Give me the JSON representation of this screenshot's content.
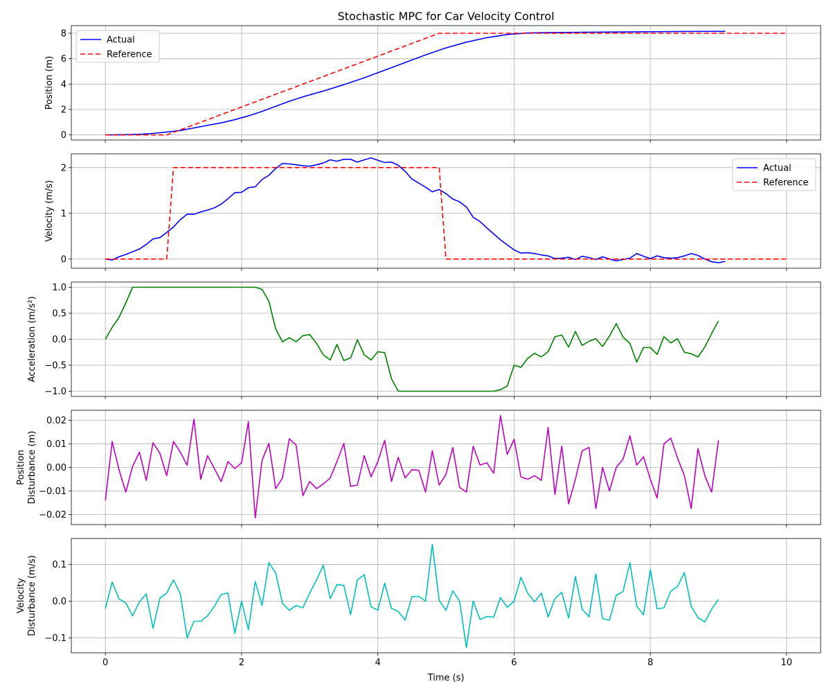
{
  "figure": {
    "title": "Stochastic MPC for Car Velocity Control",
    "xlabel": "Time (s)"
  },
  "colors": {
    "actual": "#0000ff",
    "reference": "#ff0000",
    "acceleration": "#008000",
    "pos_disturbance": "#bf00bf",
    "vel_disturbance": "#00bfbf"
  },
  "chart_data": [
    {
      "type": "line",
      "ylabel": "Position (m)",
      "xlim": [
        -0.5,
        10.5
      ],
      "ylim": [
        -0.4,
        8.6
      ],
      "xticks": [
        0,
        2,
        4,
        6,
        8,
        10
      ],
      "yticks": [
        0,
        2,
        4,
        6,
        8
      ],
      "grid": true,
      "legend": "top-left",
      "show_xticklabels": false,
      "series": [
        {
          "name": "Actual",
          "color": "#0000ff",
          "dash": "",
          "x": [
            0,
            0.3,
            0.5,
            0.7,
            0.9,
            1.1,
            1.3,
            1.5,
            1.7,
            1.9,
            2.1,
            2.3,
            2.5,
            2.7,
            2.9,
            3.2,
            3.5,
            3.8,
            4.1,
            4.4,
            4.7,
            5.0,
            5.3,
            5.6,
            5.9,
            6.2,
            6.5,
            7.0,
            7.5,
            8.0,
            8.5,
            9.1
          ],
          "y": [
            0.0,
            0.02,
            0.05,
            0.12,
            0.22,
            0.35,
            0.55,
            0.75,
            0.95,
            1.2,
            1.5,
            1.85,
            2.25,
            2.65,
            3.0,
            3.45,
            3.95,
            4.5,
            5.1,
            5.7,
            6.3,
            6.85,
            7.3,
            7.65,
            7.9,
            8.02,
            8.05,
            8.08,
            8.1,
            8.12,
            8.14,
            8.15
          ]
        },
        {
          "name": "Reference",
          "color": "#ff0000",
          "dash": "7,4",
          "x": [
            0,
            0.9,
            4.9,
            10
          ],
          "y": [
            0,
            0,
            8,
            8
          ]
        }
      ]
    },
    {
      "type": "line",
      "ylabel": "Velocity (m/s)",
      "xlim": [
        -0.5,
        10.5
      ],
      "ylim": [
        -0.2,
        2.3
      ],
      "xticks": [
        0,
        2,
        4,
        6,
        8,
        10
      ],
      "yticks": [
        0,
        1,
        2
      ],
      "grid": true,
      "legend": "top-right",
      "show_xticklabels": false,
      "series": [
        {
          "name": "Actual",
          "color": "#0000ff",
          "dash": "",
          "x": [
            0,
            0.1,
            0.2,
            0.3,
            0.4,
            0.5,
            0.6,
            0.7,
            0.8,
            0.9,
            1.0,
            1.1,
            1.2,
            1.3,
            1.4,
            1.5,
            1.6,
            1.7,
            1.8,
            1.9,
            2.0,
            2.1,
            2.2,
            2.3,
            2.4,
            2.5,
            2.6,
            2.7,
            2.8,
            2.9,
            3.0,
            3.1,
            3.2,
            3.3,
            3.4,
            3.5,
            3.6,
            3.7,
            3.8,
            3.9,
            4.0,
            4.1,
            4.2,
            4.3,
            4.4,
            4.5,
            4.6,
            4.7,
            4.8,
            4.9,
            5.0,
            5.1,
            5.2,
            5.3,
            5.4,
            5.5,
            5.6,
            5.7,
            5.8,
            5.9,
            6.0,
            6.1,
            6.2,
            6.3,
            6.4,
            6.5,
            6.6,
            6.7,
            6.8,
            6.9,
            7.0,
            7.1,
            7.2,
            7.3,
            7.4,
            7.5,
            7.6,
            7.7,
            7.8,
            7.9,
            8.0,
            8.1,
            8.2,
            8.3,
            8.4,
            8.5,
            8.6,
            8.7,
            8.8,
            8.9,
            9.0,
            9.1
          ],
          "y": [
            0.0,
            -0.02,
            0.05,
            0.1,
            0.16,
            0.22,
            0.32,
            0.44,
            0.47,
            0.58,
            0.7,
            0.86,
            0.98,
            0.98,
            1.03,
            1.07,
            1.12,
            1.2,
            1.32,
            1.45,
            1.46,
            1.56,
            1.58,
            1.74,
            1.83,
            1.98,
            2.09,
            2.08,
            2.06,
            2.04,
            2.03,
            2.06,
            2.1,
            2.17,
            2.14,
            2.18,
            2.18,
            2.12,
            2.17,
            2.21,
            2.16,
            2.11,
            2.12,
            2.05,
            1.92,
            1.75,
            1.66,
            1.57,
            1.47,
            1.52,
            1.43,
            1.31,
            1.25,
            1.14,
            0.91,
            0.82,
            0.68,
            0.55,
            0.42,
            0.31,
            0.2,
            0.13,
            0.14,
            0.12,
            0.09,
            0.07,
            0.01,
            0.02,
            0.04,
            -0.01,
            0.06,
            0.03,
            -0.01,
            0.05,
            0.0,
            -0.04,
            -0.01,
            0.02,
            0.12,
            0.06,
            0.01,
            0.07,
            0.03,
            0.02,
            0.03,
            0.07,
            0.12,
            0.08,
            0.0,
            -0.06,
            -0.08,
            -0.05
          ]
        },
        {
          "name": "Reference",
          "color": "#ff0000",
          "dash": "7,4",
          "x": [
            0,
            0.9,
            1.0,
            4.9,
            5.0,
            10
          ],
          "y": [
            0,
            0,
            2,
            2,
            0,
            0
          ]
        }
      ]
    },
    {
      "type": "line",
      "ylabel": "Acceleration (m/s²)",
      "xlim": [
        -0.5,
        10.5
      ],
      "ylim": [
        -1.1,
        1.1
      ],
      "xticks": [
        0,
        2,
        4,
        6,
        8,
        10
      ],
      "yticks": [
        -1.0,
        -0.5,
        0.0,
        0.5,
        1.0
      ],
      "grid": true,
      "legend": "",
      "show_xticklabels": false,
      "series": [
        {
          "name": "",
          "color": "#008000",
          "dash": "",
          "x": [
            0,
            0.1,
            0.2,
            0.3,
            0.4,
            2.2,
            2.3,
            2.4,
            2.5,
            2.6,
            2.7,
            2.8,
            2.9,
            3.0,
            3.1,
            3.2,
            3.3,
            3.4,
            3.5,
            3.6,
            3.7,
            3.8,
            3.9,
            4.0,
            4.1,
            4.2,
            4.3,
            5.7,
            5.8,
            5.9,
            6.0,
            6.1,
            6.2,
            6.3,
            6.4,
            6.5,
            6.6,
            6.7,
            6.8,
            6.9,
            7.0,
            7.1,
            7.2,
            7.3,
            7.4,
            7.5,
            7.6,
            7.7,
            7.8,
            7.9,
            8.0,
            8.1,
            8.2,
            8.3,
            8.4,
            8.5,
            8.6,
            8.7,
            8.8,
            8.9,
            9.0
          ],
          "y": [
            0.0,
            0.23,
            0.42,
            0.7,
            1.0,
            1.0,
            0.96,
            0.73,
            0.2,
            -0.05,
            0.03,
            -0.05,
            0.07,
            0.09,
            -0.08,
            -0.3,
            -0.4,
            -0.1,
            -0.41,
            -0.36,
            -0.01,
            -0.3,
            -0.4,
            -0.24,
            -0.26,
            -0.76,
            -1.0,
            -1.0,
            -0.97,
            -0.9,
            -0.5,
            -0.54,
            -0.37,
            -0.27,
            -0.34,
            -0.24,
            0.05,
            0.08,
            -0.15,
            0.15,
            -0.12,
            -0.04,
            0.01,
            -0.14,
            0.06,
            0.3,
            0.04,
            -0.08,
            -0.44,
            -0.16,
            -0.16,
            -0.29,
            0.05,
            -0.07,
            0.01,
            -0.25,
            -0.28,
            -0.34,
            -0.15,
            0.11,
            0.35
          ]
        }
      ]
    },
    {
      "type": "line",
      "ylabel": [
        "Position",
        "Disturbance (m)"
      ],
      "xlim": [
        -0.5,
        10.5
      ],
      "ylim": [
        -0.0243,
        0.0243
      ],
      "xticks": [
        0,
        2,
        4,
        6,
        8,
        10
      ],
      "yticks": [
        -0.02,
        -0.01,
        0.0,
        0.01,
        0.02
      ],
      "grid": true,
      "legend": "",
      "show_xticklabels": false,
      "series": [
        {
          "name": "",
          "color": "#bf00bf",
          "dash": "",
          "x": [
            0,
            0.1,
            0.2,
            0.3,
            0.4,
            0.5,
            0.6,
            0.7,
            0.8,
            0.9,
            1.0,
            1.1,
            1.2,
            1.3,
            1.4,
            1.5,
            1.6,
            1.7,
            1.8,
            1.9,
            2.0,
            2.1,
            2.2,
            2.3,
            2.4,
            2.5,
            2.6,
            2.7,
            2.8,
            2.9,
            3.0,
            3.1,
            3.2,
            3.3,
            3.4,
            3.5,
            3.6,
            3.7,
            3.8,
            3.9,
            4.0,
            4.1,
            4.2,
            4.3,
            4.4,
            4.5,
            4.6,
            4.7,
            4.8,
            4.9,
            5.0,
            5.1,
            5.2,
            5.3,
            5.4,
            5.5,
            5.6,
            5.7,
            5.8,
            5.9,
            6.0,
            6.1,
            6.2,
            6.3,
            6.4,
            6.5,
            6.6,
            6.7,
            6.8,
            6.9,
            7.0,
            7.1,
            7.2,
            7.3,
            7.4,
            7.5,
            7.6,
            7.7,
            7.8,
            7.9,
            8.0,
            8.1,
            8.2,
            8.3,
            8.4,
            8.5,
            8.6,
            8.7,
            8.8,
            8.9,
            9.0
          ],
          "y": [
            -0.014,
            0.011,
            -0.001,
            -0.0105,
            0.0005,
            0.0065,
            -0.0055,
            0.0105,
            0.006,
            -0.0035,
            0.011,
            0.0065,
            0.001,
            0.0205,
            -0.005,
            0.005,
            -0.0005,
            -0.006,
            0.0025,
            -0.0005,
            0.002,
            0.0195,
            -0.0215,
            0.003,
            0.0102,
            -0.009,
            -0.0045,
            0.0122,
            0.0095,
            -0.012,
            -0.006,
            -0.009,
            -0.007,
            -0.0045,
            0.0025,
            0.0102,
            -0.008,
            -0.0075,
            0.005,
            -0.004,
            0.0025,
            0.0115,
            -0.006,
            0.0043,
            -0.0045,
            -0.001,
            -0.0012,
            -0.0105,
            0.0071,
            -0.0075,
            -0.003,
            0.0085,
            -0.0085,
            -0.0105,
            0.009,
            0.001,
            0.002,
            -0.0025,
            0.022,
            0.0055,
            0.012,
            -0.004,
            -0.005,
            -0.0035,
            -0.0055,
            0.017,
            -0.0115,
            0.009,
            -0.0155,
            -0.005,
            0.007,
            0.0085,
            -0.0175,
            0.0,
            -0.01,
            0.0,
            0.0035,
            0.0135,
            0.001,
            0.0045,
            -0.005,
            -0.013,
            0.01,
            0.0125,
            0.004,
            -0.0035,
            -0.0175,
            0.008,
            -0.0035,
            -0.0105,
            0.0115
          ]
        }
      ]
    },
    {
      "type": "line",
      "ylabel": [
        "Velocity",
        "Disturbance (m/s)"
      ],
      "xlim": [
        -0.5,
        10.5
      ],
      "ylim": [
        -0.141,
        0.171
      ],
      "xticks": [
        0,
        2,
        4,
        6,
        8,
        10
      ],
      "yticks": [
        -0.1,
        0.0,
        0.1
      ],
      "grid": true,
      "legend": "",
      "show_xticklabels": true,
      "series": [
        {
          "name": "",
          "color": "#00bfbf",
          "dash": "",
          "x": [
            0,
            0.1,
            0.2,
            0.3,
            0.4,
            0.5,
            0.6,
            0.7,
            0.8,
            0.9,
            1.0,
            1.1,
            1.2,
            1.3,
            1.4,
            1.5,
            1.6,
            1.7,
            1.8,
            1.9,
            2.0,
            2.1,
            2.2,
            2.3,
            2.4,
            2.5,
            2.6,
            2.7,
            2.8,
            2.9,
            3.0,
            3.1,
            3.2,
            3.3,
            3.4,
            3.5,
            3.6,
            3.7,
            3.8,
            3.9,
            4.0,
            4.1,
            4.2,
            4.3,
            4.4,
            4.5,
            4.6,
            4.7,
            4.8,
            4.9,
            5.0,
            5.1,
            5.2,
            5.3,
            5.4,
            5.5,
            5.6,
            5.7,
            5.8,
            5.9,
            6.0,
            6.1,
            6.2,
            6.3,
            6.4,
            6.5,
            6.6,
            6.7,
            6.8,
            6.9,
            7.0,
            7.1,
            7.2,
            7.3,
            7.4,
            7.5,
            7.6,
            7.7,
            7.8,
            7.9,
            8.0,
            8.1,
            8.2,
            8.3,
            8.4,
            8.5,
            8.6,
            8.7,
            8.8,
            8.9,
            9.0
          ],
          "y": [
            -0.02,
            0.052,
            0.006,
            -0.005,
            -0.04,
            -0.002,
            0.02,
            -0.074,
            0.008,
            0.022,
            0.058,
            0.02,
            -0.1,
            -0.055,
            -0.055,
            -0.04,
            -0.014,
            0.018,
            0.022,
            -0.088,
            0.0,
            -0.078,
            0.054,
            -0.012,
            0.105,
            0.077,
            -0.006,
            -0.025,
            -0.012,
            -0.018,
            0.022,
            0.058,
            0.098,
            0.007,
            0.045,
            0.043,
            -0.037,
            0.058,
            0.072,
            -0.015,
            -0.025,
            0.049,
            -0.02,
            -0.028,
            -0.052,
            0.012,
            0.013,
            0.0,
            0.155,
            0.002,
            -0.025,
            0.028,
            0.0,
            -0.127,
            0.0,
            -0.05,
            -0.042,
            -0.044,
            0.01,
            -0.017,
            0.0,
            0.065,
            0.022,
            -0.002,
            0.022,
            -0.043,
            0.007,
            0.024,
            -0.046,
            0.067,
            -0.022,
            -0.043,
            0.074,
            -0.048,
            -0.052,
            0.016,
            0.026,
            0.105,
            -0.014,
            -0.037,
            0.086,
            -0.021,
            -0.018,
            0.027,
            0.04,
            0.078,
            -0.014,
            -0.045,
            -0.057,
            -0.022,
            0.005
          ]
        }
      ]
    }
  ]
}
